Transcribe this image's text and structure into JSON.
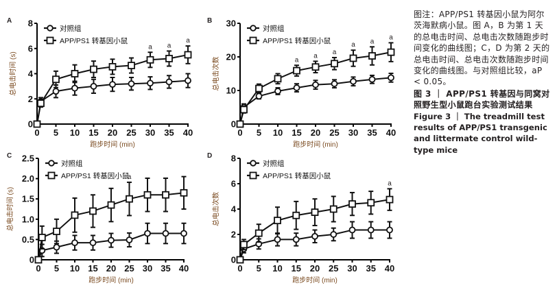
{
  "caption": {
    "note": "图注：APP/PS1 转基因小鼠为阿尔茨海默病小鼠。图 A，B 为第 1 天的总电击时间、总电击次数随跑步时间变化的曲线图；C，D 为第 2 天的总电击时间、总电击次数随跑步时间变化的曲线图。与对照组比较，",
    "note_sig": "aP < 0.05。",
    "title_cn": "图 3 ｜ APP/PS1 转基因与同窝对照野生型小鼠跑台实验测试结果",
    "title_en": "Figure 3 ｜ The treadmill test results of APP/PS1 transgenic and littermate control wild-type mice"
  },
  "colors": {
    "axis": "#000000",
    "ylabel": "#7a4a1f",
    "text": "#231f20"
  },
  "chart_data": [
    {
      "panel": "A",
      "type": "line",
      "title": "",
      "xlabel": "跑步时间 (min)",
      "ylabel": "总电击时间 (s)",
      "x": [
        0,
        1,
        5,
        10,
        15,
        20,
        25,
        30,
        35,
        40
      ],
      "xticks": [
        0,
        5,
        10,
        15,
        20,
        25,
        30,
        35,
        40
      ],
      "xlim": [
        0,
        40
      ],
      "ylim": [
        0,
        8
      ],
      "yticks": [
        0,
        2,
        4,
        6,
        8
      ],
      "ytick_labels": [
        "0",
        "2",
        "4",
        "6",
        "8"
      ],
      "grid": false,
      "legend_position": "top-left",
      "series": [
        {
          "name": "对照组",
          "marker": "circle",
          "values": [
            0,
            1.8,
            2.6,
            2.85,
            3.0,
            3.15,
            3.2,
            3.25,
            3.35,
            3.45
          ],
          "errors": [
            0,
            0.3,
            0.5,
            0.55,
            0.55,
            0.55,
            0.5,
            0.5,
            0.5,
            0.55
          ]
        },
        {
          "name": "APP/PS1 转基因小鼠",
          "marker": "square",
          "values": [
            0,
            1.65,
            3.55,
            4.0,
            4.35,
            4.55,
            4.65,
            5.1,
            5.2,
            5.5
          ],
          "errors": [
            0,
            0.3,
            0.65,
            0.7,
            0.65,
            0.6,
            0.6,
            0.6,
            0.6,
            0.7
          ]
        }
      ],
      "annotations": [
        {
          "x": 30,
          "text": "a"
        },
        {
          "x": 35,
          "text": "a"
        },
        {
          "x": 40,
          "text": "a"
        }
      ]
    },
    {
      "panel": "B",
      "type": "line",
      "title": "",
      "xlabel": "跑步时间 (min)",
      "ylabel": "总电击次数",
      "x": [
        0,
        1,
        5,
        10,
        15,
        20,
        25,
        30,
        35,
        40
      ],
      "xticks": [
        0,
        5,
        10,
        15,
        20,
        25,
        30,
        35,
        40
      ],
      "xlim": [
        0,
        40
      ],
      "ylim": [
        0,
        30
      ],
      "yticks": [
        0,
        10,
        20,
        30
      ],
      "ytick_labels": [
        "0",
        "10",
        "20",
        "30"
      ],
      "grid": false,
      "legend_position": "top-left",
      "series": [
        {
          "name": "对照组",
          "marker": "circle",
          "values": [
            0,
            5.0,
            8.3,
            9.8,
            10.8,
            11.7,
            12.0,
            12.7,
            13.3,
            13.8
          ],
          "errors": [
            0,
            1.0,
            0.8,
            1.0,
            1.2,
            1.3,
            1.2,
            1.3,
            1.2,
            1.3
          ]
        },
        {
          "name": "APP/PS1 转基因小鼠",
          "marker": "square",
          "values": [
            0,
            4.3,
            10.6,
            13.5,
            15.9,
            17.0,
            18.0,
            19.6,
            20.3,
            21.4
          ],
          "errors": [
            0,
            1.0,
            1.3,
            1.5,
            1.6,
            1.7,
            1.8,
            2.4,
            2.7,
            2.8
          ]
        }
      ],
      "annotations": [
        {
          "x": 15,
          "text": "a"
        },
        {
          "x": 20,
          "text": "a"
        },
        {
          "x": 25,
          "text": "a"
        },
        {
          "x": 30,
          "text": "a"
        },
        {
          "x": 35,
          "text": "a"
        },
        {
          "x": 40,
          "text": "a"
        }
      ]
    },
    {
      "panel": "C",
      "type": "line",
      "title": "",
      "xlabel": "跑步时间 (min)",
      "ylabel": "总电击时间 (s)",
      "x": [
        0,
        1,
        5,
        10,
        15,
        20,
        25,
        30,
        35,
        40
      ],
      "xticks": [
        0,
        5,
        10,
        15,
        20,
        25,
        30,
        35,
        40
      ],
      "xlim": [
        0,
        40
      ],
      "ylim": [
        0,
        2.5
      ],
      "yticks": [
        0,
        0.5,
        1.0,
        1.5,
        2.0,
        2.5
      ],
      "ytick_labels": [
        "0",
        "0.5",
        "1.0",
        "1.5",
        "2.0",
        "2.5"
      ],
      "grid": false,
      "legend_position": "top-left",
      "series": [
        {
          "name": "对照组",
          "marker": "circle",
          "values": [
            0,
            0.23,
            0.31,
            0.42,
            0.42,
            0.48,
            0.49,
            0.65,
            0.65,
            0.65
          ],
          "errors": [
            0,
            0.15,
            0.15,
            0.18,
            0.18,
            0.17,
            0.17,
            0.25,
            0.25,
            0.25
          ]
        },
        {
          "name": "APP/PS1 转基因小鼠",
          "marker": "square",
          "values": [
            0,
            0.55,
            0.7,
            1.1,
            1.2,
            1.35,
            1.5,
            1.6,
            1.6,
            1.65
          ],
          "errors": [
            0,
            0.28,
            0.3,
            0.42,
            0.4,
            0.41,
            0.41,
            0.41,
            0.41,
            0.4
          ]
        }
      ],
      "annotations": [
        {
          "x": 25,
          "text": "a"
        }
      ]
    },
    {
      "panel": "D",
      "type": "line",
      "title": "",
      "xlabel": "跑步时间 (min)",
      "ylabel": "总电击次数",
      "x": [
        0,
        1,
        5,
        10,
        15,
        20,
        25,
        30,
        35,
        40
      ],
      "xticks": [
        0,
        5,
        10,
        15,
        20,
        25,
        30,
        35,
        40
      ],
      "xlim": [
        0,
        40
      ],
      "ylim": [
        0,
        8
      ],
      "yticks": [
        0,
        2,
        4,
        6,
        8
      ],
      "ytick_labels": [
        "0",
        "2",
        "4",
        "6",
        "8"
      ],
      "grid": false,
      "legend_position": "top-left",
      "series": [
        {
          "name": "对照组",
          "marker": "circle",
          "values": [
            0,
            0.85,
            1.25,
            1.6,
            1.6,
            1.85,
            2.0,
            2.35,
            2.35,
            2.35
          ],
          "errors": [
            0,
            0.3,
            0.4,
            0.5,
            0.5,
            0.5,
            0.5,
            0.65,
            0.65,
            0.65
          ]
        },
        {
          "name": "APP/PS1 转基因小鼠",
          "marker": "square",
          "values": [
            0,
            1.2,
            2.1,
            3.1,
            3.5,
            3.75,
            4.0,
            4.4,
            4.5,
            4.75
          ],
          "errors": [
            0,
            0.4,
            0.7,
            1.05,
            1.1,
            1.05,
            1.0,
            0.9,
            0.9,
            0.85
          ]
        }
      ],
      "annotations": [
        {
          "x": 40,
          "text": "a"
        }
      ]
    }
  ]
}
